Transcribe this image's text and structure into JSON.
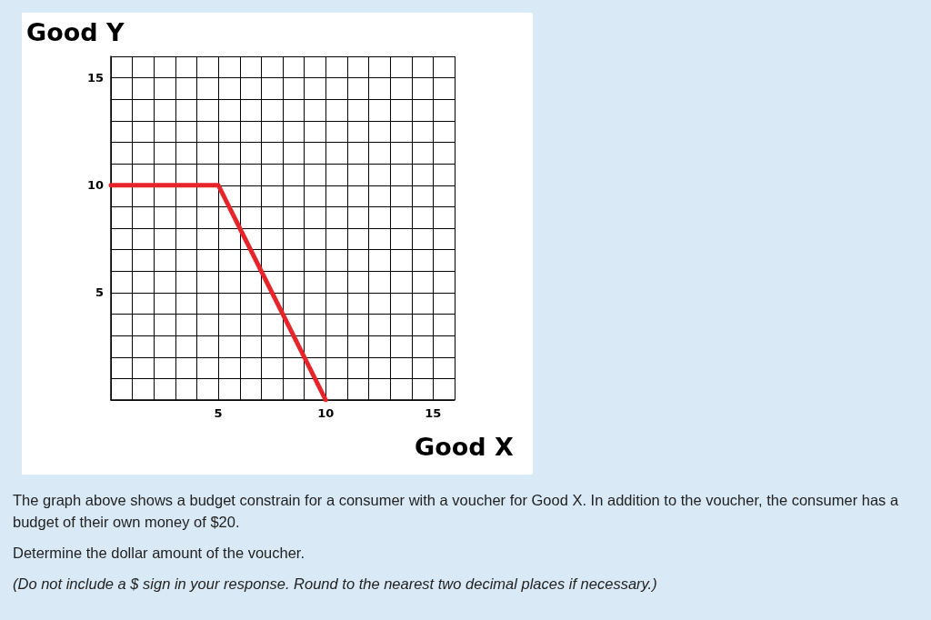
{
  "chart_data": {
    "type": "line",
    "title": "Good Y",
    "xlabel": "Good X",
    "x": [
      0,
      5,
      10
    ],
    "series": [
      {
        "color": "#e8242b",
        "values": [
          10,
          10,
          0
        ]
      }
    ],
    "xlim": [
      0,
      16
    ],
    "ylim": [
      0,
      16
    ],
    "xticks": [
      {
        "value": 0,
        "label": null
      },
      {
        "value": 1,
        "label": null
      },
      {
        "value": 2,
        "label": null
      },
      {
        "value": 3,
        "label": null
      },
      {
        "value": 4,
        "label": null
      },
      5,
      {
        "value": 6,
        "label": null
      },
      {
        "value": 7,
        "label": null
      },
      {
        "value": 8,
        "label": null
      },
      {
        "value": 9,
        "label": null
      },
      10,
      {
        "value": 11,
        "label": null
      },
      {
        "value": 12,
        "label": null
      },
      {
        "value": 13,
        "label": null
      },
      {
        "value": 14,
        "label": null
      },
      15,
      {
        "value": 16,
        "label": null
      }
    ],
    "yticks": [
      {
        "value": 0,
        "label": null
      },
      {
        "value": 1,
        "label": null
      },
      {
        "value": 2,
        "label": null
      },
      {
        "value": 3,
        "label": null
      },
      {
        "value": 4,
        "label": null
      },
      5,
      {
        "value": 6,
        "label": null
      },
      {
        "value": 7,
        "label": null
      },
      {
        "value": 8,
        "label": null
      },
      {
        "value": 9,
        "label": null
      },
      10,
      {
        "value": 11,
        "label": null
      },
      {
        "value": 12,
        "label": null
      },
      {
        "value": 13,
        "label": null
      },
      {
        "value": 14,
        "label": null
      },
      15,
      {
        "value": 16,
        "label": null
      }
    ],
    "grid": true,
    "marker": "none",
    "line_style": "solid",
    "annotations": [
      "The graph above shows a budget constrain for a consumer with a voucher for Good X. In addition to the voucher, the consumer has a budget of their own money of $20.",
      "Determine the dollar amount of the voucher.",
      "(Do not include a $ sign in your response. Round to the nearest two decimal places if necessary.)"
    ]
  }
}
